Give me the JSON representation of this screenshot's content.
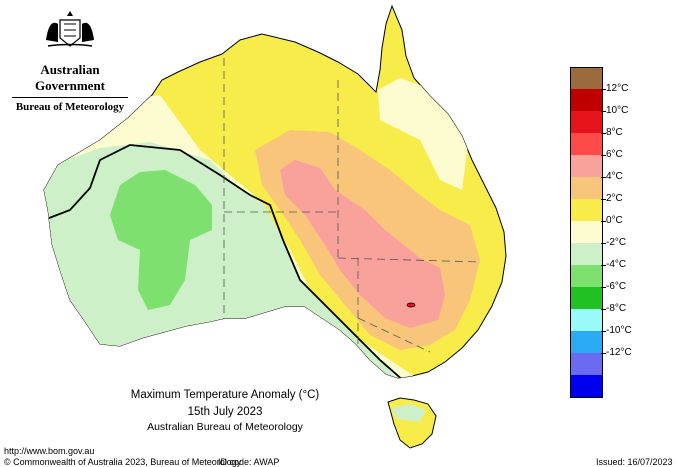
{
  "header": {
    "government": "Australian Government",
    "bureau": "Bureau of Meteorology"
  },
  "map": {
    "title": "Maximum Temperature Anomaly (°C)",
    "date": "15th July 2023",
    "source": "Australian Bureau of Meteorology"
  },
  "legend": {
    "items": [
      {
        "label": "",
        "color": "#9b6a3d"
      },
      {
        "label": "12°C",
        "color": "#c00000"
      },
      {
        "label": "10°C",
        "color": "#e6141b"
      },
      {
        "label": "8°C",
        "color": "#ff4a4a"
      },
      {
        "label": "6°C",
        "color": "#f9a19b"
      },
      {
        "label": "4°C",
        "color": "#f9c57b"
      },
      {
        "label": "2°C",
        "color": "#f8ec4a"
      },
      {
        "label": "0°C",
        "color": "#fcfcd0"
      },
      {
        "label": "-2°C",
        "color": "#cdf0c8"
      },
      {
        "label": "-4°C",
        "color": "#7ee06f"
      },
      {
        "label": "-6°C",
        "color": "#22c122"
      },
      {
        "label": "-8°C",
        "color": "#9afafa"
      },
      {
        "label": "-10°C",
        "color": "#29aaf2"
      },
      {
        "label": "-12°C",
        "color": "#6b6bf2"
      },
      {
        "label": "",
        "color": "#0000f0"
      }
    ]
  },
  "footer": {
    "url": "http://www.bom.gov.au",
    "copyright": "© Commonwealth of Australia 2023, Bureau of Meteorology",
    "id_code": "ID code: AWAP",
    "issued": "Issued: 16/07/2023"
  }
}
